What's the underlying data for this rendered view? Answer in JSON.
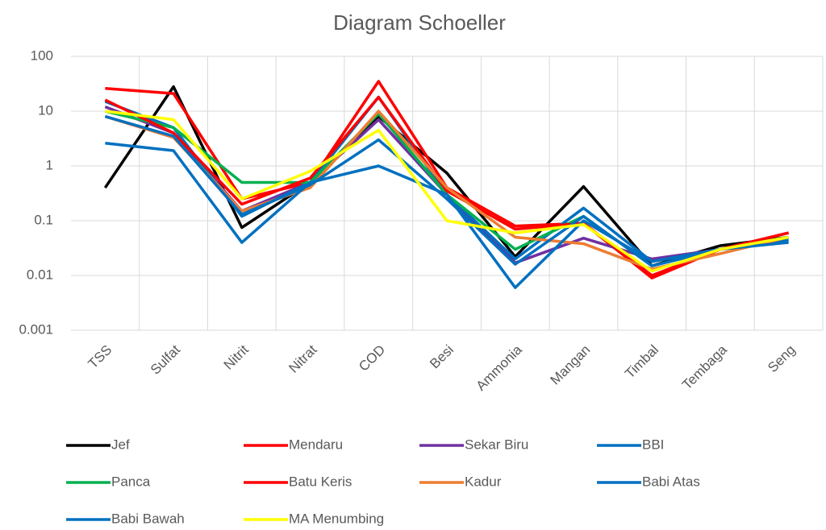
{
  "chart_data": {
    "type": "line",
    "title": "Diagram Schoeller",
    "categories": [
      "TSS",
      "Sulfat",
      "Nitrit",
      "Nitrat",
      "COD",
      "Besi",
      "Ammonia",
      "Mangan",
      "Timbal",
      "Tembaga",
      "Seng"
    ],
    "series": [
      {
        "name": "Jef",
        "color": "#000000",
        "values": [
          0.4,
          28,
          0.075,
          0.5,
          8,
          0.74,
          0.022,
          0.42,
          0.015,
          0.035,
          0.05
        ]
      },
      {
        "name": "Mendaru",
        "color": "#ff0000",
        "values": [
          26,
          21,
          0.25,
          0.5,
          35,
          0.4,
          0.08,
          0.09,
          0.009,
          0.03,
          0.06
        ]
      },
      {
        "name": "Sekar Biru",
        "color": "#7030a0",
        "values": [
          12,
          4,
          0.15,
          0.5,
          7,
          0.3,
          0.017,
          0.048,
          0.02,
          0.03,
          0.05
        ]
      },
      {
        "name": "BBI",
        "color": "#0070c0",
        "values": [
          15,
          5,
          0.12,
          0.5,
          18,
          0.3,
          0.02,
          0.17,
          0.018,
          0.03,
          0.045
        ]
      },
      {
        "name": "Panca",
        "color": "#00b050",
        "values": [
          10,
          5,
          0.5,
          0.5,
          9,
          0.3,
          0.03,
          0.12,
          0.015,
          0.03,
          0.05
        ]
      },
      {
        "name": "Batu Keris",
        "color": "#ff0000",
        "values": [
          16,
          4,
          0.2,
          0.6,
          18,
          0.35,
          0.07,
          0.09,
          0.01,
          0.03,
          0.06
        ]
      },
      {
        "name": "Kadur",
        "color": "#ed7d31",
        "values": [
          8,
          3.3,
          0.15,
          0.4,
          10,
          0.4,
          0.05,
          0.038,
          0.013,
          0.025,
          0.05
        ]
      },
      {
        "name": "Babi Atas",
        "color": "#0070c0",
        "values": [
          2.6,
          1.9,
          0.04,
          0.5,
          1,
          0.3,
          0.006,
          0.1,
          0.018,
          0.03,
          0.04
        ]
      },
      {
        "name": "Babi Bawah",
        "color": "#0070c0",
        "values": [
          8,
          3.5,
          0.13,
          0.45,
          3,
          0.25,
          0.016,
          0.12,
          0.015,
          0.03,
          0.05
        ]
      },
      {
        "name": "MA Menumbing",
        "color": "#ffff00",
        "values": [
          10,
          7,
          0.25,
          0.8,
          4.5,
          0.1,
          0.06,
          0.085,
          0.012,
          0.03,
          0.05
        ]
      }
    ],
    "ylim": [
      0.001,
      100
    ],
    "yticks": [
      0.001,
      0.01,
      0.1,
      1,
      10,
      100
    ],
    "log_y": true,
    "grid": true,
    "legend": "bottom"
  }
}
